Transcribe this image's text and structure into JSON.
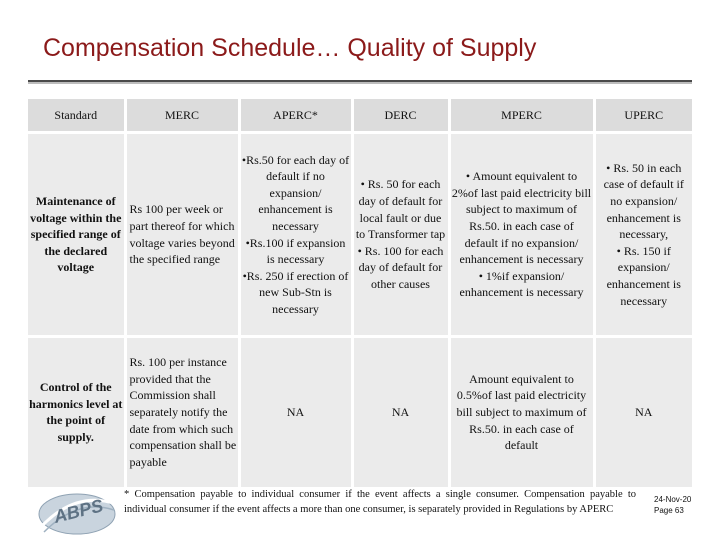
{
  "slide": {
    "title": "Compensation Schedule… Quality of Supply",
    "footnote": "* Compensation payable to individual consumer if the event affects a single consumer. Compensation payable to individual consumer if the event affects a more than one consumer, is separately provided in Regulations by APERC",
    "date": "24-Nov-20",
    "page": "Page 63",
    "logo_text": "ABPS",
    "colors": {
      "title": "#8b1a1a",
      "header_bg": "#dcdcdc",
      "cell_bg": "#ebebeb"
    }
  },
  "table": {
    "headers": {
      "standard": "Standard",
      "merc": "MERC",
      "aperc": "APERC*",
      "derc": "DERC",
      "mperc": "MPERC",
      "uperc": "UPERC"
    },
    "row1": {
      "standard": "Maintenance of voltage within the specified range of the declared voltage",
      "merc": "Rs 100 per week or part thereof for which voltage varies beyond the specified range",
      "aperc_1": "•Rs.50 for each day of default if no expansion/ enhancement is necessary",
      "aperc_2": "•Rs.100 if expansion is necessary",
      "aperc_3": "•Rs. 250 if erection of new Sub-Stn is necessary",
      "derc_1": "• Rs. 50 for each day of default for local fault or due to Transformer tap",
      "derc_2": "• Rs. 100 for each day of default for other causes",
      "mperc_1": "• Amount equivalent to 2%of last paid electricity bill subject to maximum of Rs.50. in each case of default if no expansion/ enhancement is necessary",
      "mperc_2": "• 1%if expansion/ enhancement is necessary",
      "uperc_1": "• Rs. 50 in each case of default if no expansion/ enhancement is necessary,",
      "uperc_2": "• Rs. 150 if expansion/ enhancement is necessary"
    },
    "row2": {
      "standard": "Control of the harmonics level at the point of supply.",
      "merc": "Rs. 100 per instance provided that the Commission shall separately notify the date from which such compensation shall be payable",
      "aperc": "NA",
      "derc": "NA",
      "mperc": "Amount equivalent to 0.5%of last paid electricity bill subject to maximum of Rs.50. in each case of default",
      "uperc": "NA"
    }
  }
}
